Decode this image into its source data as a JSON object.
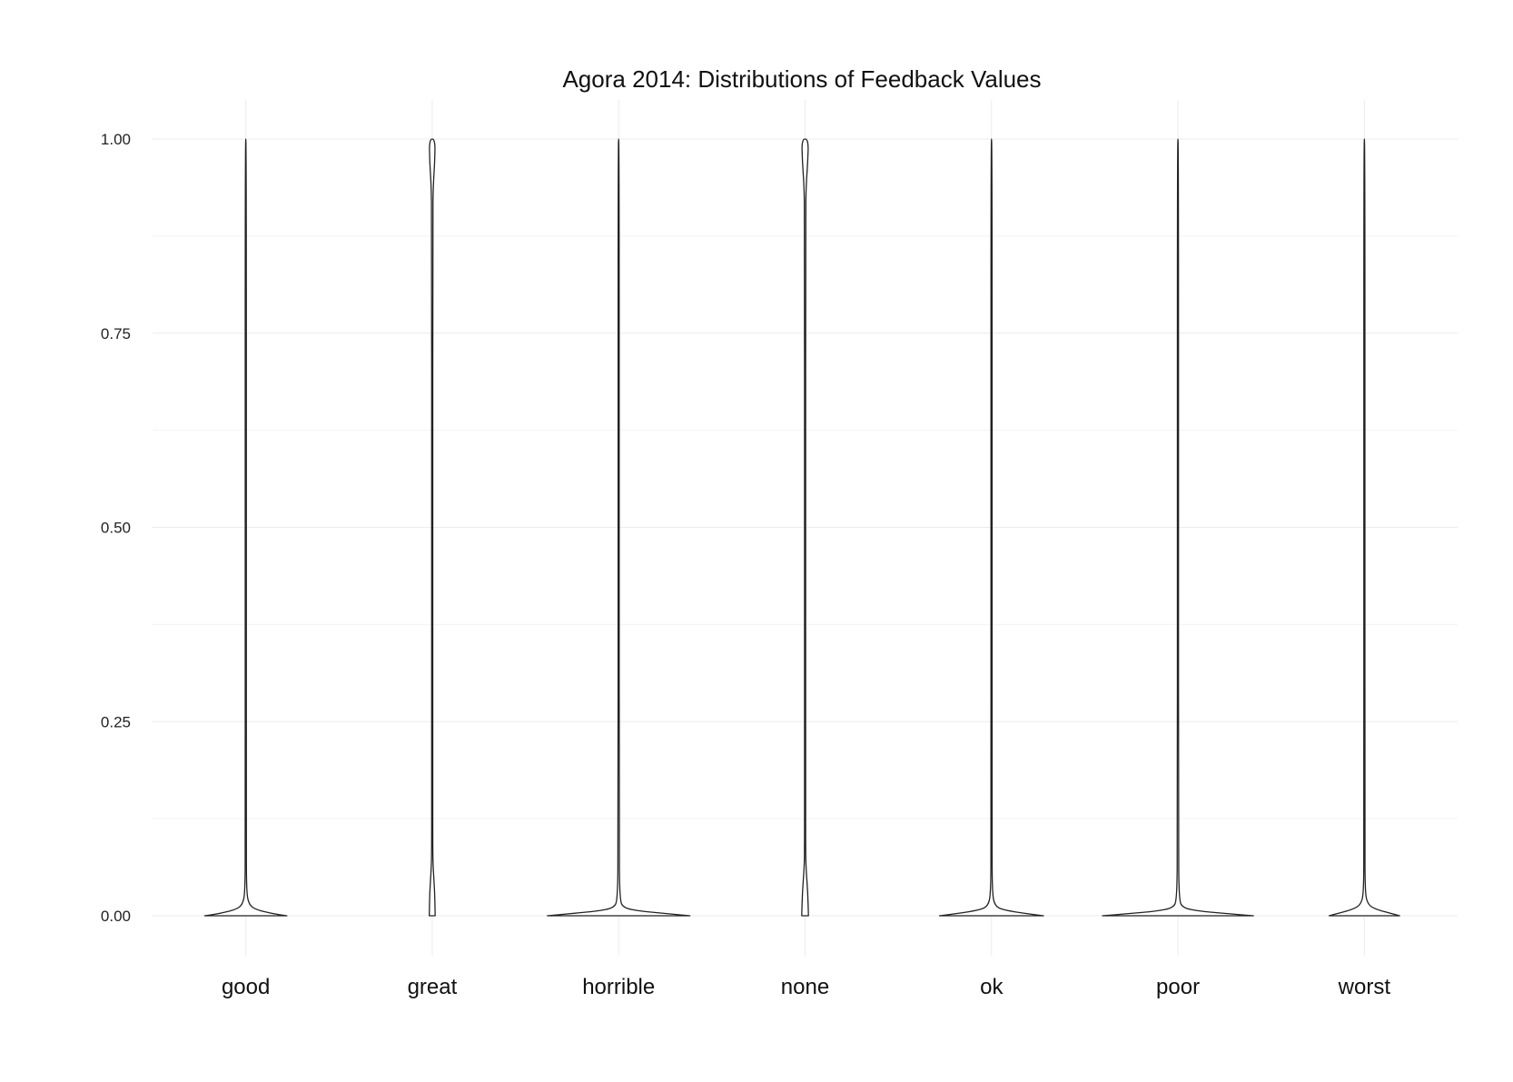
{
  "chart_data": {
    "type": "violin",
    "title": "Agora 2014: Distributions of Feedback Values",
    "xlabel": "",
    "ylabel": "",
    "ylim": [
      -0.05,
      1.05
    ],
    "y_ticks": [
      "0.00",
      "0.25",
      "0.50",
      "0.75",
      "1.00"
    ],
    "y_tick_values": [
      0,
      0.25,
      0.5,
      0.75,
      1.0
    ],
    "grid": true,
    "legend": "none",
    "categories": [
      "good",
      "great",
      "horrible",
      "none",
      "ok",
      "poor",
      "worst"
    ],
    "series": [
      {
        "category": "good",
        "y_range": [
          0,
          1
        ],
        "density_profile": [
          [
            0,
            0.49
          ],
          [
            0.003,
            0.3
          ],
          [
            0.008,
            0.12
          ],
          [
            0.014,
            0.04
          ],
          [
            0.03,
            0.008
          ],
          [
            0.1,
            0.004
          ],
          [
            0.5,
            0.003
          ],
          [
            1.0,
            0.003
          ]
        ]
      },
      {
        "category": "great",
        "y_range": [
          0,
          1
        ],
        "density_profile": [
          [
            0,
            0.035
          ],
          [
            0.03,
            0.03
          ],
          [
            0.06,
            0.012
          ],
          [
            0.08,
            0.004
          ],
          [
            0.15,
            0.003
          ],
          [
            0.5,
            0.003
          ],
          [
            0.9,
            0.004
          ],
          [
            0.94,
            0.012
          ],
          [
            0.97,
            0.03
          ],
          [
            1.0,
            0.035
          ]
        ]
      },
      {
        "category": "horrible",
        "y_range": [
          0,
          1
        ],
        "density_profile": [
          [
            0,
            0.85
          ],
          [
            0.003,
            0.55
          ],
          [
            0.006,
            0.25
          ],
          [
            0.01,
            0.06
          ],
          [
            0.02,
            0.012
          ],
          [
            0.1,
            0.004
          ],
          [
            0.5,
            0.003
          ],
          [
            1.0,
            0.003
          ]
        ]
      },
      {
        "category": "none",
        "y_range": [
          0,
          1
        ],
        "density_profile": [
          [
            0,
            0.04
          ],
          [
            0.03,
            0.032
          ],
          [
            0.06,
            0.012
          ],
          [
            0.08,
            0.004
          ],
          [
            0.15,
            0.003
          ],
          [
            0.5,
            0.003
          ],
          [
            0.9,
            0.004
          ],
          [
            0.94,
            0.012
          ],
          [
            0.97,
            0.032
          ],
          [
            1.0,
            0.04
          ]
        ]
      },
      {
        "category": "ok",
        "y_range": [
          0,
          1
        ],
        "density_profile": [
          [
            0,
            0.62
          ],
          [
            0.003,
            0.4
          ],
          [
            0.007,
            0.16
          ],
          [
            0.012,
            0.04
          ],
          [
            0.03,
            0.008
          ],
          [
            0.1,
            0.004
          ],
          [
            0.5,
            0.003
          ],
          [
            1.0,
            0.003
          ]
        ]
      },
      {
        "category": "poor",
        "y_range": [
          0,
          1
        ],
        "density_profile": [
          [
            0,
            0.9
          ],
          [
            0.003,
            0.55
          ],
          [
            0.006,
            0.25
          ],
          [
            0.01,
            0.06
          ],
          [
            0.02,
            0.012
          ],
          [
            0.1,
            0.004
          ],
          [
            0.5,
            0.003
          ],
          [
            1.0,
            0.003
          ]
        ]
      },
      {
        "category": "worst",
        "y_range": [
          0,
          1
        ],
        "density_profile": [
          [
            0,
            0.42
          ],
          [
            0.004,
            0.28
          ],
          [
            0.009,
            0.12
          ],
          [
            0.015,
            0.04
          ],
          [
            0.03,
            0.008
          ],
          [
            0.1,
            0.004
          ],
          [
            0.5,
            0.003
          ],
          [
            1.0,
            0.003
          ]
        ]
      }
    ]
  }
}
